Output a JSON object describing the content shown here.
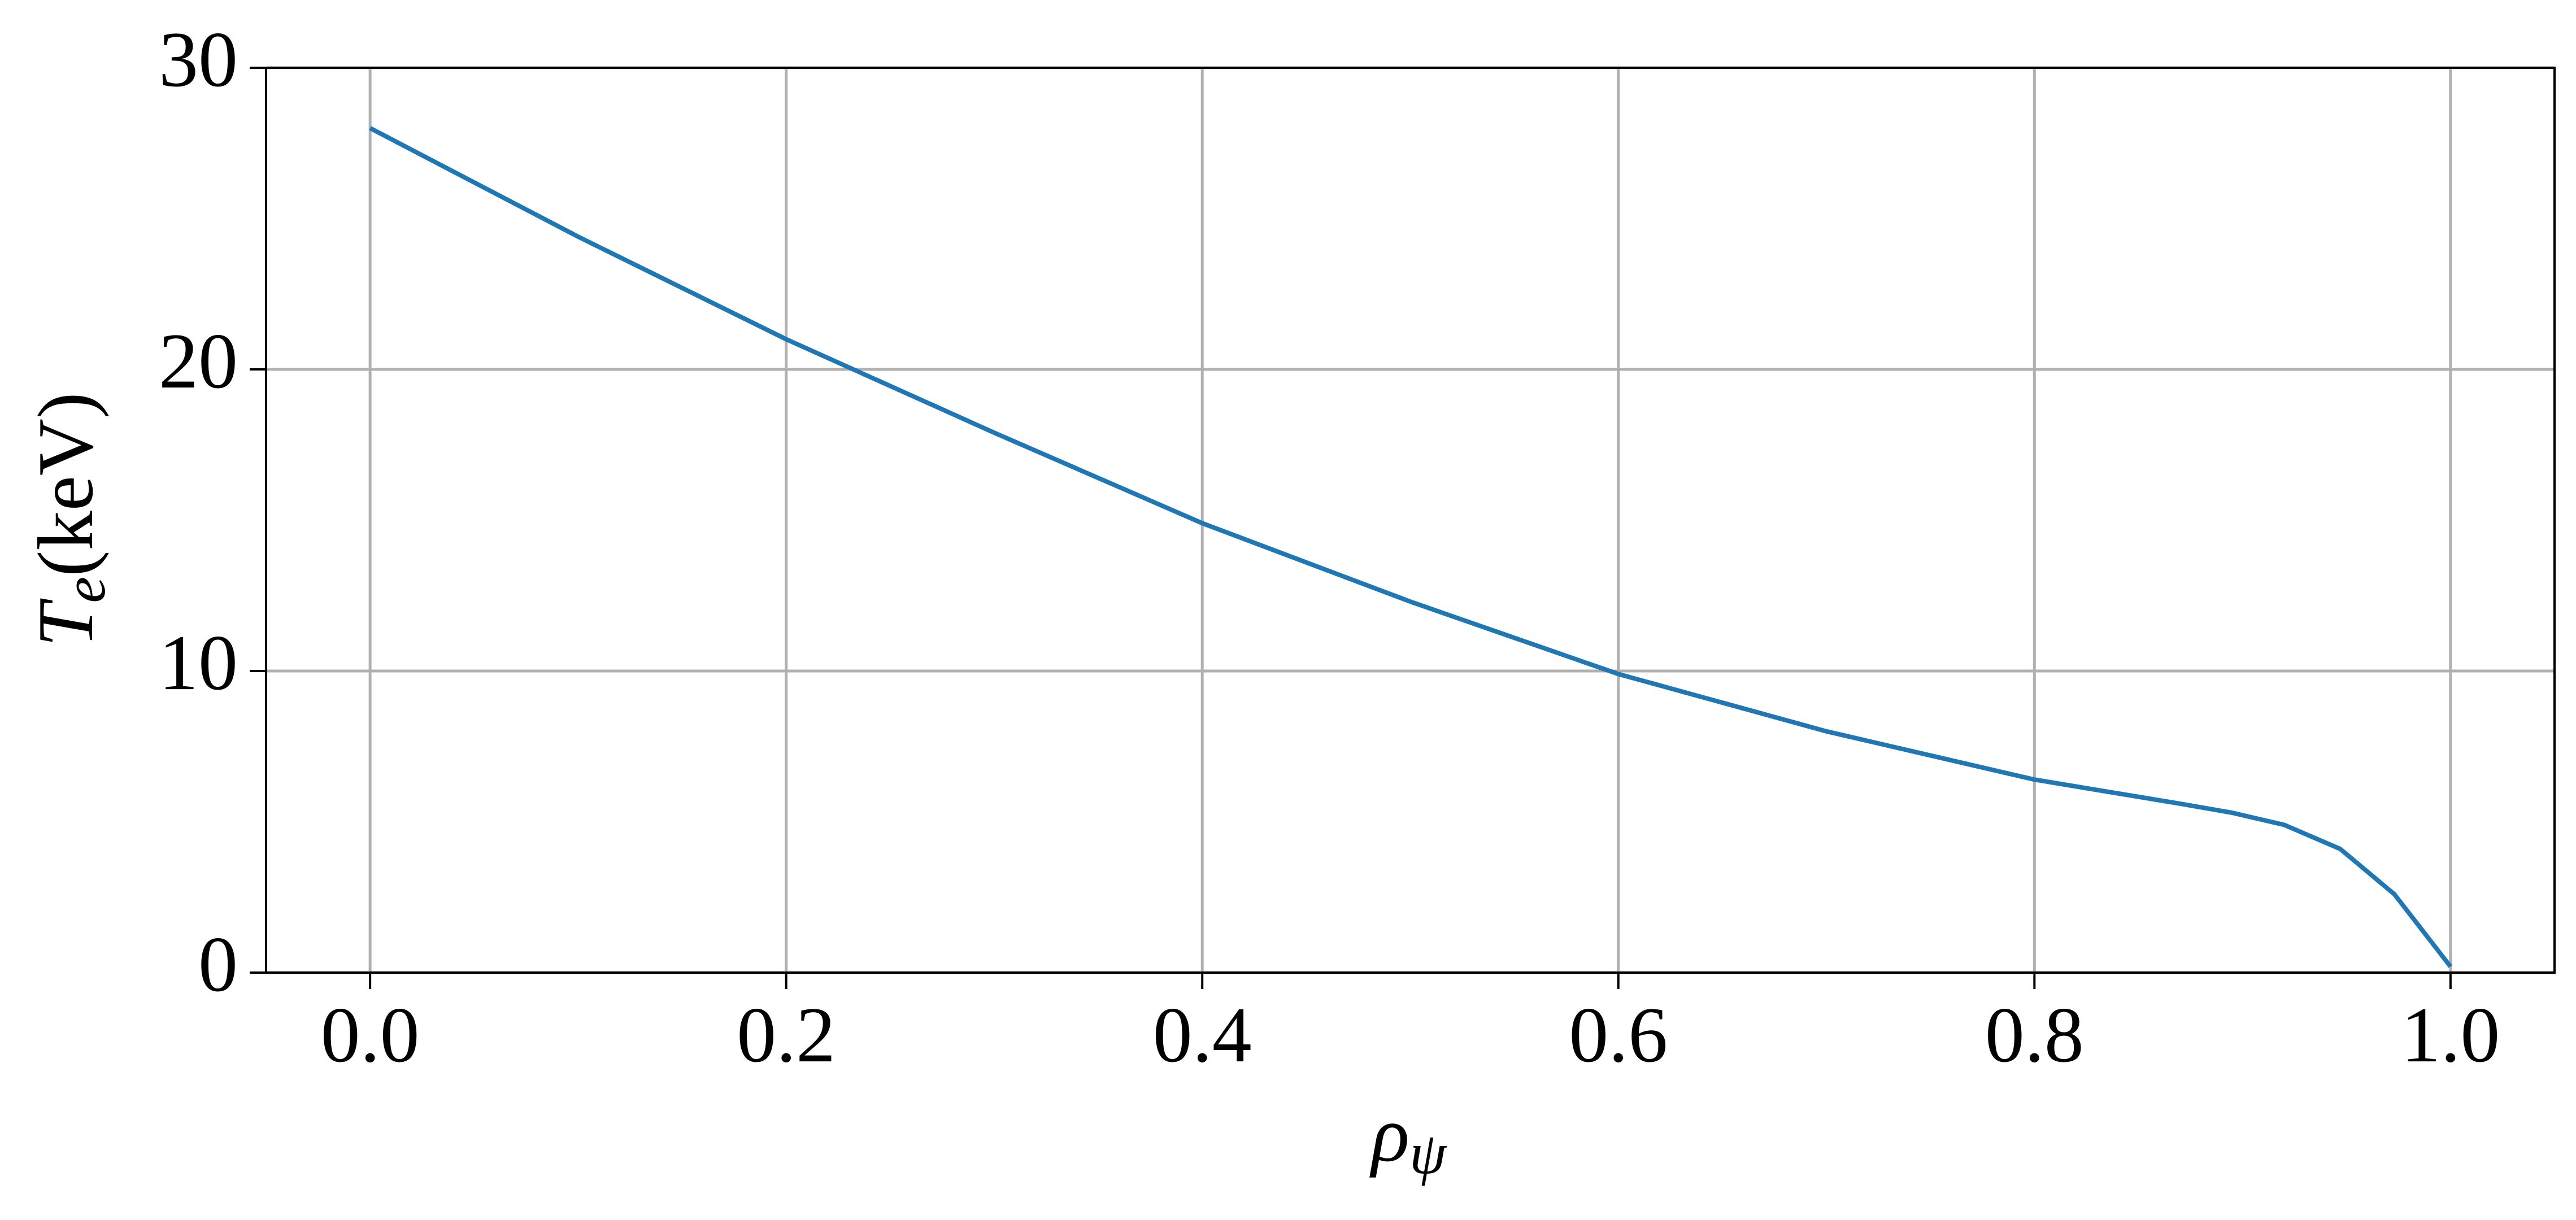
{
  "chart_data": {
    "type": "line",
    "xlabel": "ρ",
    "xlabel_subscript": "ψ",
    "ylabel": "T",
    "ylabel_subscript": "e",
    "ylabel_unit": "(keV)",
    "x": [
      0,
      0.1,
      0.2,
      0.3,
      0.4,
      0.5,
      0.6,
      0.7,
      0.8,
      0.87,
      0.895,
      0.92,
      0.947,
      0.973,
      1.0
    ],
    "series": [
      {
        "color": "#1f77b4",
        "values": [
          28,
          24.4,
          21,
          17.9,
          14.9,
          12.3,
          9.9,
          8.0,
          6.4,
          5.6,
          5.3,
          4.9,
          4.1,
          2.6,
          0.2
        ]
      }
    ],
    "xlim": [
      -0.05,
      1.05
    ],
    "ylim": [
      0,
      30
    ],
    "xticks": [
      {
        "value": 0,
        "label": "0.0"
      },
      {
        "value": 0.2,
        "label": "0.2"
      },
      {
        "value": 0.4,
        "label": "0.4"
      },
      {
        "value": 0.6,
        "label": "0.6"
      },
      {
        "value": 0.8,
        "label": "0.8"
      },
      {
        "value": 1,
        "label": "1.0"
      }
    ],
    "yticks": [
      0,
      10,
      20,
      30
    ],
    "grid": true
  }
}
